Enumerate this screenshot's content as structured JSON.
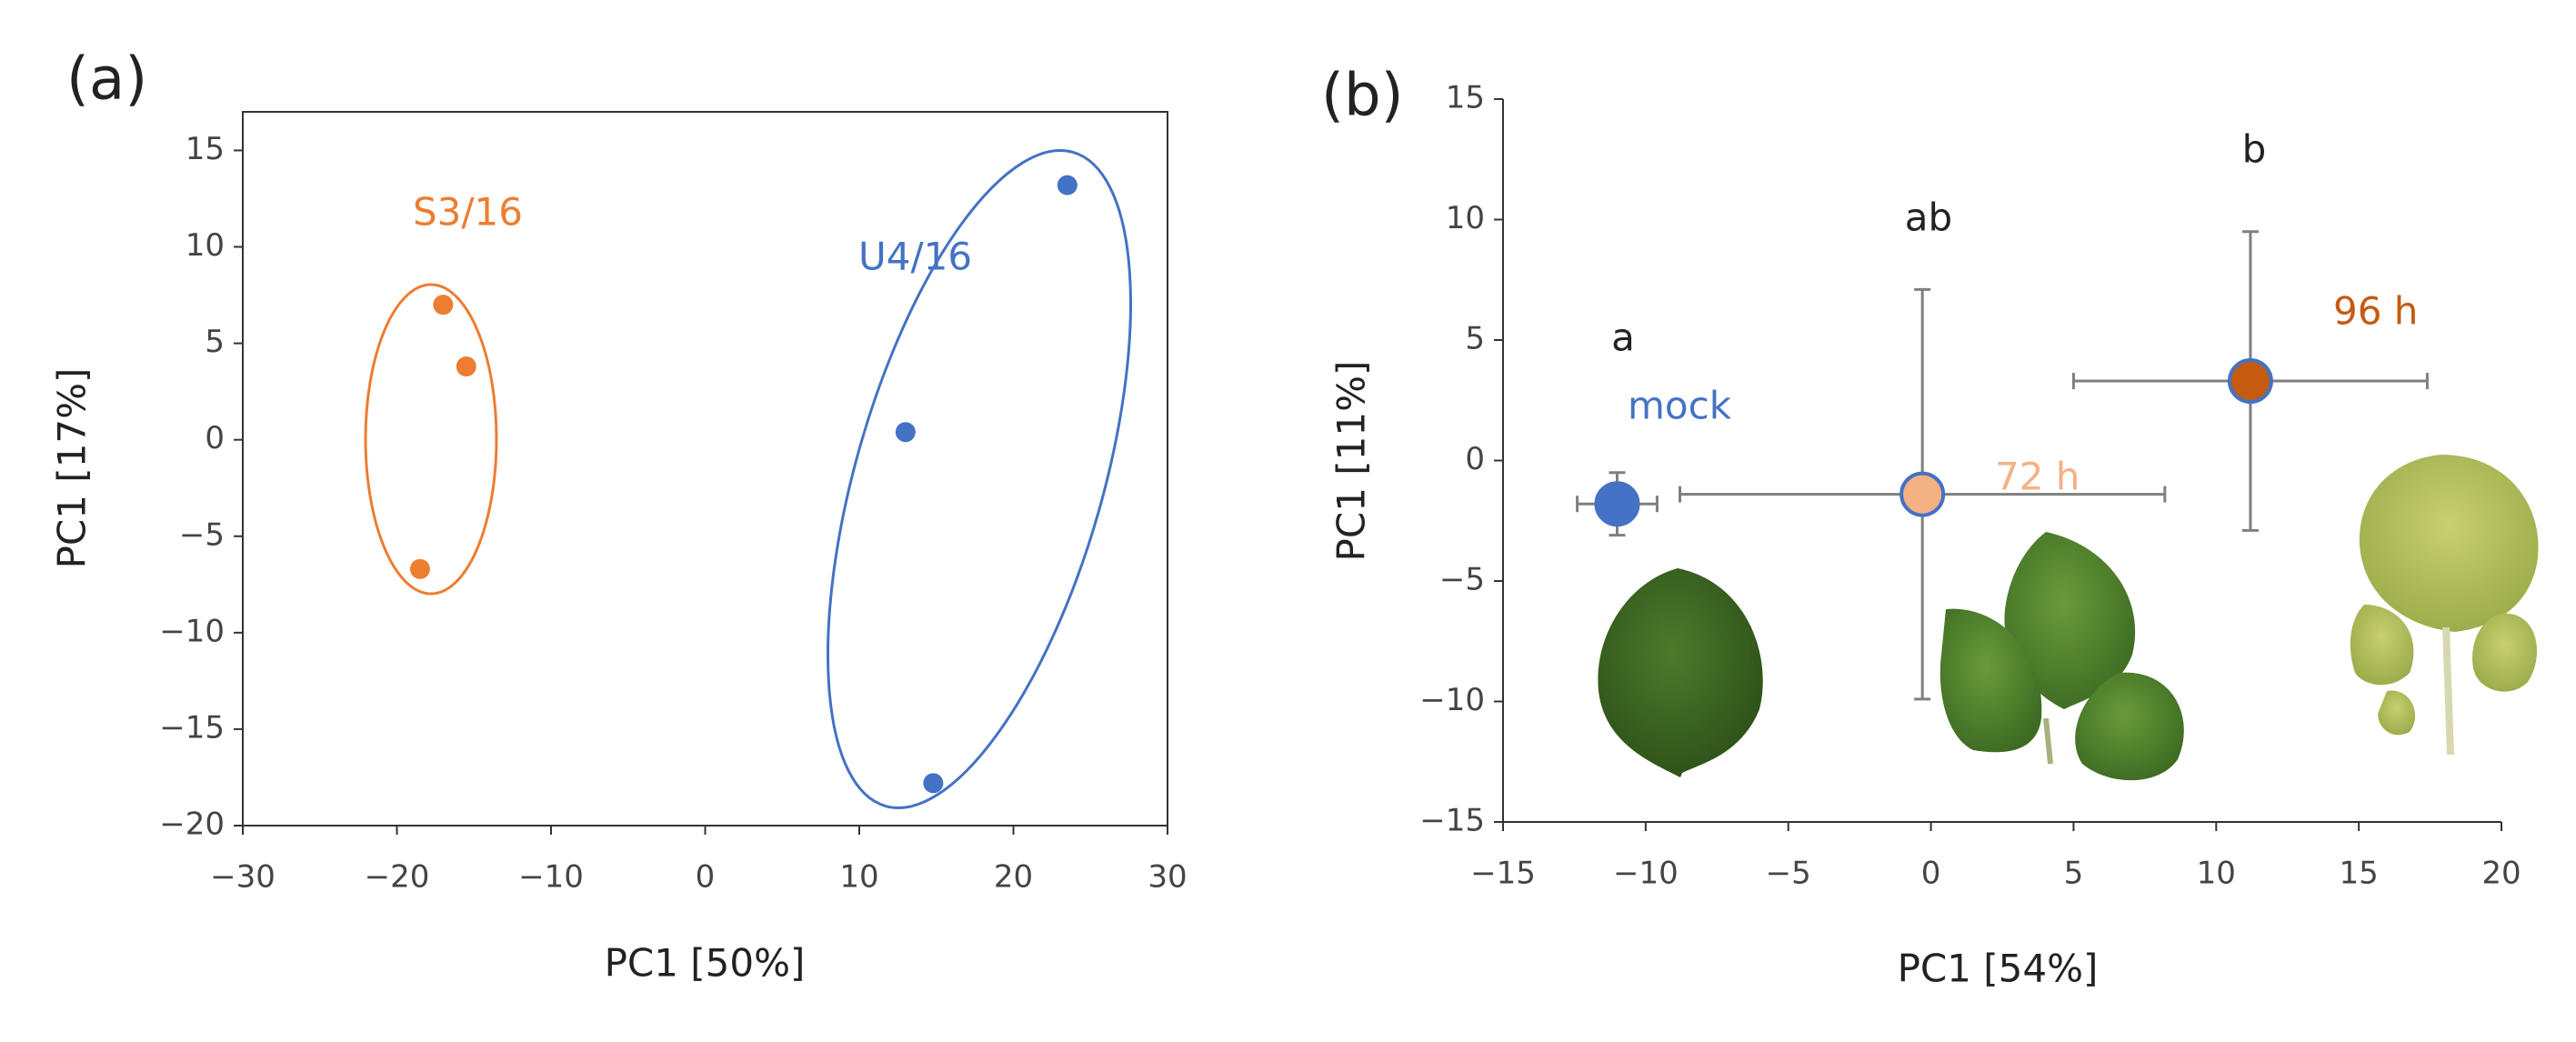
{
  "chart_data": [
    {
      "type": "scatter",
      "panel": "(a)",
      "xlabel": "PC1 [50%]",
      "ylabel": "PC1 [17%]",
      "xlim": [
        -30,
        30
      ],
      "ylim": [
        -20,
        17
      ],
      "xticks": [
        {
          "value": -30,
          "label": "−30"
        },
        {
          "value": -20,
          "label": "−20"
        },
        {
          "value": -10,
          "label": "−10"
        },
        0,
        10,
        20,
        30
      ],
      "yticks": [
        {
          "value": -20,
          "label": "−20"
        },
        {
          "value": -15,
          "label": "−15"
        },
        {
          "value": -10,
          "label": "−10"
        },
        {
          "value": -5,
          "label": "−5"
        },
        0,
        5,
        10,
        15
      ],
      "series": [
        {
          "name": "S3/16",
          "color": "#ed7d31",
          "x": [
            -17,
            -15.5,
            -18.5
          ],
          "values": [
            7,
            3.8,
            -6.7
          ]
        },
        {
          "name": "U4/16",
          "color": "#4472c4",
          "x": [
            13,
            23.5,
            14.8
          ],
          "values": [
            0.4,
            13.2,
            -17.8
          ]
        }
      ]
    },
    {
      "type": "scatter",
      "panel": "(b)",
      "xlabel": "PC1 [54%]",
      "ylabel": "PC1 [11%]",
      "xlim": [
        -15,
        20
      ],
      "ylim": [
        -15,
        15
      ],
      "xticks": [
        {
          "value": -15,
          "label": "−15"
        },
        {
          "value": -10,
          "label": "−10"
        },
        {
          "value": -5,
          "label": "−5"
        },
        0,
        5,
        10,
        15,
        20
      ],
      "yticks": [
        {
          "value": -15,
          "label": "−15"
        },
        {
          "value": -10,
          "label": "−10"
        },
        {
          "value": -5,
          "label": "−5"
        },
        0,
        5,
        10,
        15
      ],
      "edgecolor": "#4472c4",
      "series": [
        {
          "name": "mock",
          "color": "#4472c4",
          "x": [
            -11
          ],
          "values": [
            -1.8
          ],
          "xerr": [
            1.4
          ],
          "yerr": [
            1.3
          ]
        },
        {
          "name": "72 h",
          "color": "#f4b183",
          "x": [
            -0.3
          ],
          "values": [
            -1.4
          ],
          "xerr": [
            8.5
          ],
          "yerr": [
            8.5
          ]
        },
        {
          "name": "96 h",
          "color": "#c55a11",
          "x": [
            11.2
          ],
          "values": [
            3.3
          ],
          "xerr": [
            6.2
          ],
          "yerr": [
            6.2
          ]
        }
      ],
      "annotations": [
        "a",
        "ab",
        "b"
      ]
    }
  ]
}
